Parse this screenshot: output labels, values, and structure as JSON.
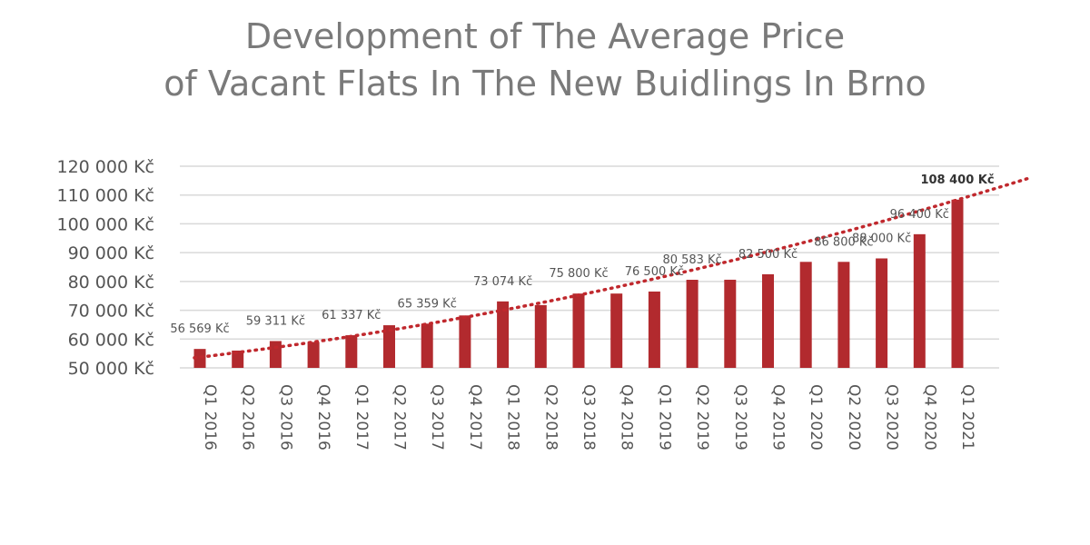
{
  "chart_data": {
    "type": "bar",
    "title": "Development of The Average Price of Vacant Flats In The New Buidlings In Brno",
    "title_lines": [
      "Development of The Average Price",
      "of Vacant Flats In The New Buidlings In Brno"
    ],
    "categories": [
      "Q1 2016",
      "Q2 2016",
      "Q3 2016",
      "Q4 2016",
      "Q1 2017",
      "Q2 2017",
      "Q3 2017",
      "Q4 2017",
      "Q1 2018",
      "Q2 2018",
      "Q3 2018",
      "Q4 2018",
      "Q1 2019",
      "Q2 2019",
      "Q3 2019",
      "Q4 2019",
      "Q1 2020",
      "Q2 2020",
      "Q3 2020",
      "Q4 2020",
      "Q1 2021"
    ],
    "values": [
      56569,
      56000,
      59311,
      59000,
      61337,
      64800,
      65359,
      68200,
      73074,
      71800,
      75800,
      75800,
      76500,
      80583,
      80600,
      82500,
      86800,
      86800,
      88000,
      96400,
      108400
    ],
    "data_labels": [
      {
        "category": "Q1 2016",
        "text": "56 569 Kč"
      },
      {
        "category": "Q3 2016",
        "text": "59 311 Kč"
      },
      {
        "category": "Q1 2017",
        "text": "61 337 Kč"
      },
      {
        "category": "Q3 2017",
        "text": "65 359 Kč"
      },
      {
        "category": "Q1 2018",
        "text": "73 074 Kč"
      },
      {
        "category": "Q3 2018",
        "text": "75 800 Kč"
      },
      {
        "category": "Q1 2019",
        "text": "76 500 Kč"
      },
      {
        "category": "Q2 2019",
        "text": "80 583 Kč"
      },
      {
        "category": "Q4 2019",
        "text": "82 500 Kč"
      },
      {
        "category": "Q2 2020",
        "text": "86 800 Kč"
      },
      {
        "category": "Q3 2020",
        "text": "88 000 Kč"
      },
      {
        "category": "Q4 2020",
        "text": "96 400 Kč"
      },
      {
        "category": "Q1 2021",
        "text": "108 400 Kč",
        "bold": true
      }
    ],
    "yticks": [
      {
        "value": 50000,
        "label": "50 000 Kč"
      },
      {
        "value": 60000,
        "label": "60 000 Kč"
      },
      {
        "value": 70000,
        "label": "70 000 Kč"
      },
      {
        "value": 80000,
        "label": "80 000 Kč"
      },
      {
        "value": 90000,
        "label": "90 000 Kč"
      },
      {
        "value": 100000,
        "label": "100 000 Kč"
      },
      {
        "value": 110000,
        "label": "110 000 Kč"
      },
      {
        "value": 120000,
        "label": "120 000 Kč"
      }
    ],
    "ylim": [
      50000,
      120000
    ],
    "grid": true,
    "trendline": {
      "type": "polynomial",
      "style": "dotted",
      "start_value": 53500,
      "end_value": 116000
    },
    "xlabel": "",
    "ylabel": "",
    "colors": {
      "bar": "#b22a2e",
      "trend": "#c0282d",
      "grid": "#d9d9d9",
      "title": "#7a7a7a",
      "text": "#555555"
    }
  }
}
